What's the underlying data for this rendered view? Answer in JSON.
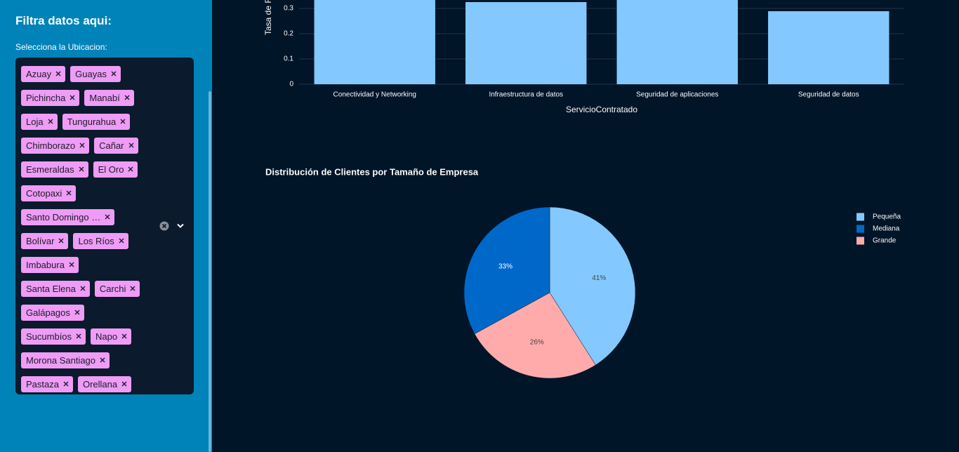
{
  "sidebar": {
    "title": "Filtra datos aqui:",
    "label": "Selecciona la Ubicacion:",
    "selected": [
      [
        "Azuay",
        "Guayas"
      ],
      [
        "Pichincha",
        "Manabí"
      ],
      [
        "Loja",
        "Tungurahua"
      ],
      [
        "Chimborazo",
        "Cañar"
      ],
      [
        "Esmeraldas",
        "El Oro"
      ],
      [
        "Cotopaxi"
      ],
      [
        "Santo Domingo …"
      ],
      [
        "Bolívar",
        "Los Ríos"
      ],
      [
        "Imbabura"
      ],
      [
        "Santa Elena",
        "Carchi"
      ],
      [
        "Galápagos"
      ],
      [
        "Sucumbíos",
        "Napo"
      ],
      [
        "Morona Santiago"
      ],
      [
        "Pastaza",
        "Orellana"
      ]
    ]
  },
  "chart_data": [
    {
      "type": "bar",
      "y_label": "Tasa de R",
      "x_label": "ServicioContratado",
      "categories": [
        "Conectividad y Networking",
        "Infraestructura de datos",
        "Seguridad de aplicaciones",
        "Seguridad de datos"
      ],
      "values": [
        0.36,
        0.325,
        0.35,
        0.289
      ],
      "color": "#83c9ff",
      "ylim": [
        0,
        0.38
      ],
      "yticks": [
        0,
        0.1,
        0.2,
        0.3
      ],
      "grid": true
    },
    {
      "type": "pie",
      "title": "Distribución de Clientes por Tamaño de Empresa",
      "categories": [
        "Pequeña",
        "Mediana",
        "Grande"
      ],
      "values": [
        41,
        33,
        26
      ],
      "value_labels": [
        "41%",
        "33%",
        "26%"
      ],
      "colors": [
        "#83c9ff",
        "#0068c9",
        "#ffabab"
      ],
      "label_colors": [
        "#444444",
        "#ffffff",
        "#444444"
      ],
      "legend": "top-right"
    }
  ]
}
